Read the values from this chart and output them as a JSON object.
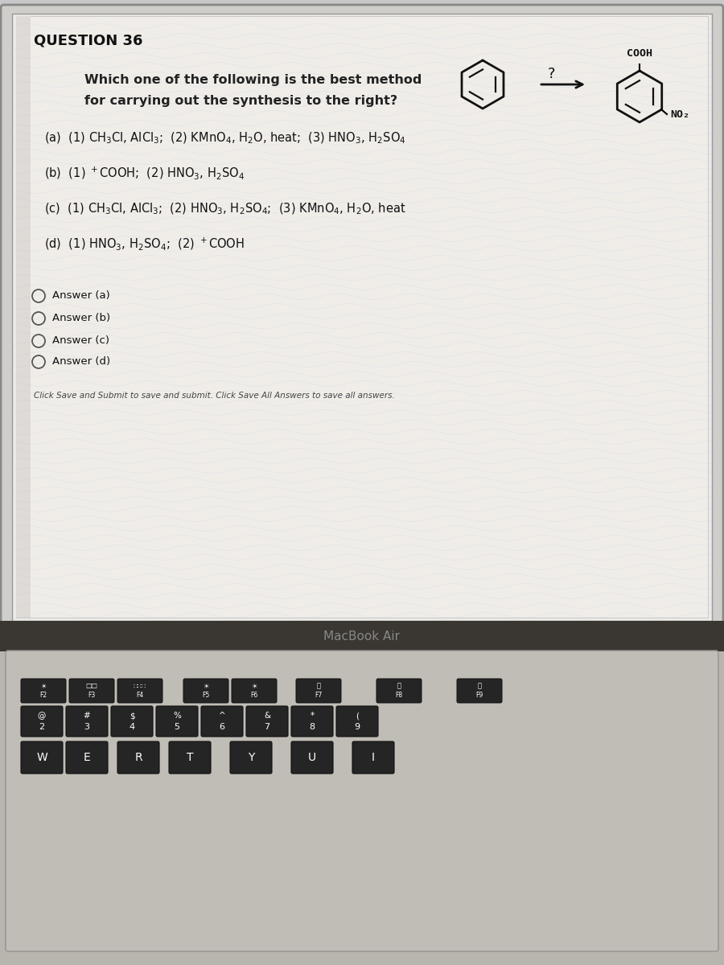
{
  "title": "QUESTION 36",
  "question_line1": "Which one of the following is the best method",
  "question_line2": "for carrying out the synthesis to the right?",
  "option_a": "(a)  (1) CH$_3$Cl, AlCl$_3$;  (2) KMnO$_4$, H$_2$O, heat;  (3) HNO$_3$, H$_2$SO$_4$",
  "option_b": "(b)  (1) $^+$COOH;  (2) HNO$_3$, H$_2$SO$_4$",
  "option_c": "(c)  (1) CH$_3$Cl, AlCl$_3$;  (2) HNO$_3$, H$_2$SO$_4$;  (3) KMnO$_4$, H$_2$O, heat",
  "option_d": "(d)  (1) HNO$_3$, H$_2$SO$_4$;  (2) $^+$COOH",
  "radio_options": [
    "Answer (a)",
    "Answer (b)",
    "Answer (c)",
    "Answer (d)"
  ],
  "footer": "Click Save and Submit to save and submit. Click Save All Answers to save all answers.",
  "macbook_label": "MacBook Air",
  "screen_bg": "#c8c8c8",
  "content_bg": "#eceae8",
  "question_bg": "#e5e2de",
  "white_box_bg": "#f8f6f4",
  "keyboard_silver": "#b8b4ae",
  "keyboard_dark_bar": "#3a3a3a",
  "key_color": "#252525",
  "key_text": "#ffffff",
  "wave_color": "#a8c8e0"
}
